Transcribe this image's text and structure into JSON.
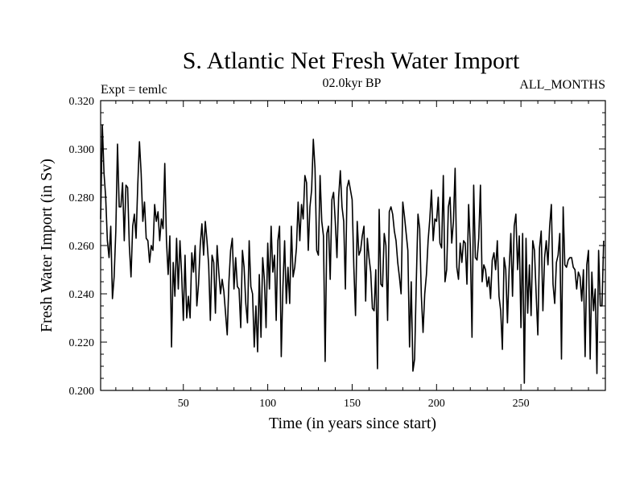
{
  "chart_data": {
    "type": "line",
    "title": "S. Atlantic Net Fresh Water Import",
    "subtitle_left": "Expt = temlc",
    "subtitle_center": "02.0kyr BP",
    "subtitle_right": "ALL_MONTHS",
    "xlabel": "Time (in years since start)",
    "ylabel": "Fresh Water Import (in Sv)",
    "xlim": [
      1,
      300
    ],
    "ylim": [
      0.2,
      0.32
    ],
    "x_ticks": [
      50,
      100,
      150,
      200,
      250
    ],
    "y_ticks": [
      0.2,
      0.22,
      0.24,
      0.26,
      0.28,
      0.3,
      0.32
    ],
    "x_tick_labels": [
      "50",
      "100",
      "150",
      "200",
      "250"
    ],
    "y_tick_labels": [
      "0.200",
      "0.220",
      "0.240",
      "0.260",
      "0.280",
      "0.300",
      "0.320"
    ],
    "line_color": "#000000",
    "series": [
      {
        "name": "Fresh Water Import",
        "x_start": 1,
        "x_step": 1,
        "values": [
          0.271,
          0.31,
          0.29,
          0.28,
          0.262,
          0.255,
          0.268,
          0.238,
          0.247,
          0.266,
          0.302,
          0.276,
          0.276,
          0.286,
          0.262,
          0.285,
          0.284,
          0.26,
          0.247,
          0.268,
          0.273,
          0.263,
          0.285,
          0.303,
          0.29,
          0.27,
          0.278,
          0.263,
          0.262,
          0.253,
          0.26,
          0.258,
          0.277,
          0.27,
          0.274,
          0.262,
          0.271,
          0.267,
          0.294,
          0.262,
          0.248,
          0.264,
          0.218,
          0.253,
          0.239,
          0.263,
          0.242,
          0.262,
          0.248,
          0.229,
          0.256,
          0.23,
          0.239,
          0.23,
          0.257,
          0.249,
          0.26,
          0.235,
          0.244,
          0.26,
          0.269,
          0.256,
          0.27,
          0.262,
          0.252,
          0.229,
          0.256,
          0.253,
          0.232,
          0.26,
          0.249,
          0.24,
          0.246,
          0.241,
          0.232,
          0.223,
          0.245,
          0.258,
          0.263,
          0.242,
          0.255,
          0.243,
          0.242,
          0.226,
          0.258,
          0.251,
          0.236,
          0.228,
          0.262,
          0.243,
          0.24,
          0.218,
          0.235,
          0.216,
          0.248,
          0.222,
          0.255,
          0.246,
          0.226,
          0.261,
          0.242,
          0.268,
          0.249,
          0.256,
          0.229,
          0.262,
          0.268,
          0.214,
          0.243,
          0.262,
          0.236,
          0.251,
          0.236,
          0.268,
          0.247,
          0.251,
          0.259,
          0.278,
          0.262,
          0.277,
          0.271,
          0.289,
          0.286,
          0.258,
          0.276,
          0.283,
          0.304,
          0.292,
          0.258,
          0.256,
          0.289,
          0.27,
          0.264,
          0.212,
          0.265,
          0.268,
          0.246,
          0.279,
          0.282,
          0.27,
          0.255,
          0.28,
          0.291,
          0.276,
          0.27,
          0.242,
          0.284,
          0.287,
          0.283,
          0.279,
          0.251,
          0.231,
          0.27,
          0.256,
          0.258,
          0.264,
          0.268,
          0.237,
          0.263,
          0.255,
          0.249,
          0.234,
          0.233,
          0.25,
          0.209,
          0.275,
          0.244,
          0.243,
          0.265,
          0.26,
          0.229,
          0.274,
          0.276,
          0.273,
          0.266,
          0.262,
          0.253,
          0.247,
          0.24,
          0.278,
          0.272,
          0.265,
          0.258,
          0.218,
          0.245,
          0.208,
          0.213,
          0.245,
          0.273,
          0.267,
          0.239,
          0.224,
          0.24,
          0.248,
          0.262,
          0.271,
          0.283,
          0.262,
          0.271,
          0.27,
          0.28,
          0.261,
          0.259,
          0.289,
          0.245,
          0.25,
          0.276,
          0.28,
          0.261,
          0.27,
          0.292,
          0.251,
          0.246,
          0.261,
          0.253,
          0.262,
          0.261,
          0.244,
          0.277,
          0.26,
          0.222,
          0.285,
          0.255,
          0.254,
          0.263,
          0.285,
          0.245,
          0.252,
          0.25,
          0.243,
          0.247,
          0.238,
          0.254,
          0.257,
          0.25,
          0.262,
          0.239,
          0.233,
          0.217,
          0.255,
          0.25,
          0.228,
          0.25,
          0.265,
          0.239,
          0.268,
          0.273,
          0.25,
          0.264,
          0.226,
          0.265,
          0.203,
          0.263,
          0.232,
          0.252,
          0.231,
          0.262,
          0.258,
          0.24,
          0.223,
          0.259,
          0.266,
          0.233,
          0.255,
          0.262,
          0.252,
          0.268,
          0.277,
          0.244,
          0.236,
          0.253,
          0.256,
          0.265,
          0.213,
          0.276,
          0.252,
          0.251,
          0.254,
          0.255,
          0.255,
          0.251,
          0.25,
          0.242,
          0.249,
          0.247,
          0.237,
          0.25,
          0.214,
          0.252,
          0.258,
          0.213,
          0.249,
          0.233,
          0.242,
          0.207,
          0.258,
          0.235,
          0.235,
          0.262
        ]
      }
    ]
  }
}
